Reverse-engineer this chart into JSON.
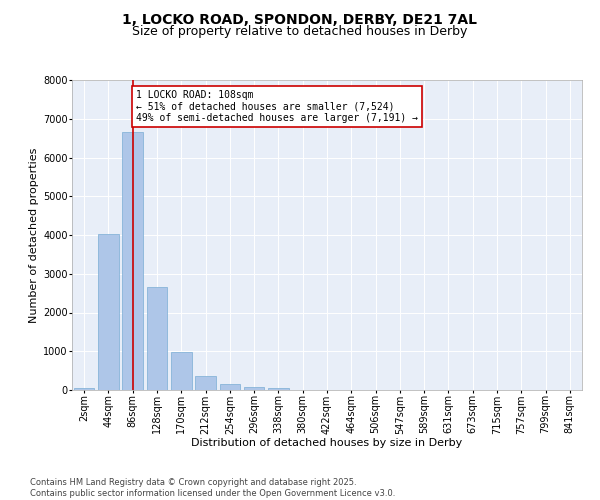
{
  "title_line1": "1, LOCKO ROAD, SPONDON, DERBY, DE21 7AL",
  "title_line2": "Size of property relative to detached houses in Derby",
  "xlabel": "Distribution of detached houses by size in Derby",
  "ylabel": "Number of detached properties",
  "categories": [
    "2sqm",
    "44sqm",
    "86sqm",
    "128sqm",
    "170sqm",
    "212sqm",
    "254sqm",
    "296sqm",
    "338sqm",
    "380sqm",
    "422sqm",
    "464sqm",
    "506sqm",
    "547sqm",
    "589sqm",
    "631sqm",
    "673sqm",
    "715sqm",
    "757sqm",
    "799sqm",
    "841sqm"
  ],
  "values": [
    50,
    4020,
    6650,
    2650,
    980,
    360,
    150,
    70,
    50,
    0,
    0,
    0,
    0,
    0,
    0,
    0,
    0,
    0,
    0,
    0,
    0
  ],
  "bar_color": "#aec6e8",
  "bar_edge_color": "#7aadd4",
  "vline_x": 2,
  "vline_color": "#cc0000",
  "annotation_text": "1 LOCKO ROAD: 108sqm\n← 51% of detached houses are smaller (7,524)\n49% of semi-detached houses are larger (7,191) →",
  "annotation_box_color": "#ffffff",
  "annotation_box_edge": "#cc0000",
  "ylim": [
    0,
    8000
  ],
  "yticks": [
    0,
    1000,
    2000,
    3000,
    4000,
    5000,
    6000,
    7000,
    8000
  ],
  "plot_background": "#e8eef8",
  "footer_line1": "Contains HM Land Registry data © Crown copyright and database right 2025.",
  "footer_line2": "Contains public sector information licensed under the Open Government Licence v3.0.",
  "title_fontsize": 10,
  "subtitle_fontsize": 9,
  "axis_label_fontsize": 8,
  "tick_fontsize": 7,
  "annotation_fontsize": 7,
  "footer_fontsize": 6
}
